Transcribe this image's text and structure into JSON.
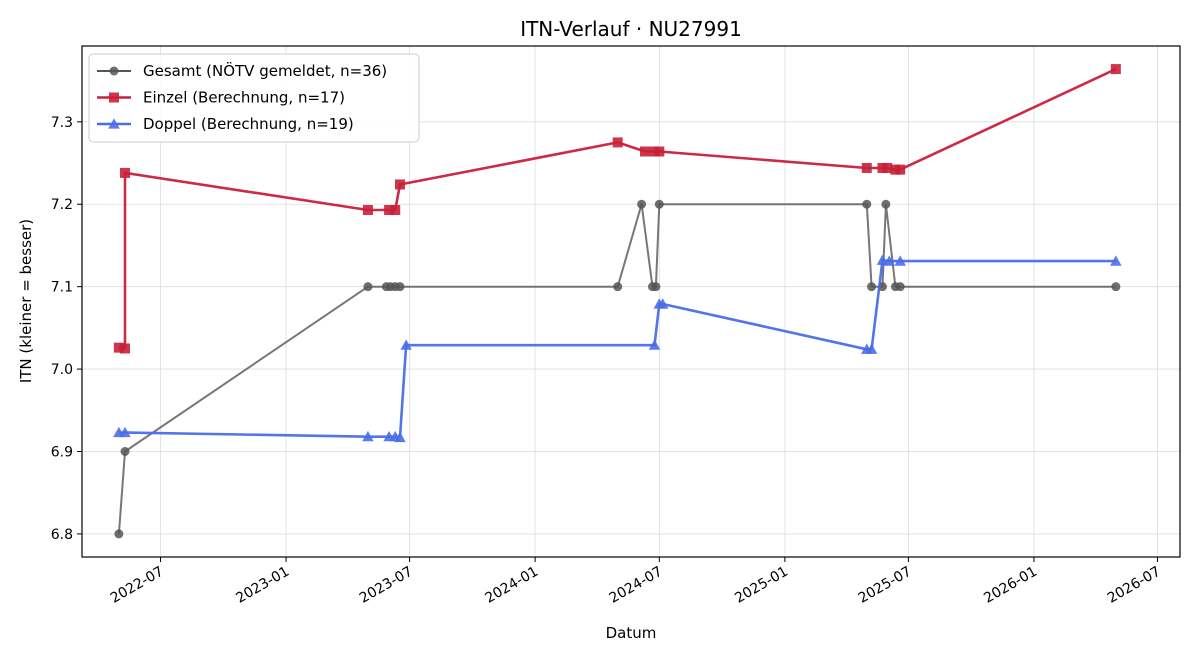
{
  "chart_data": {
    "type": "line",
    "title": "ITN-Verlauf · NU27991",
    "xlabel": "Datum",
    "ylabel": "ITN  (kleiner = besser)",
    "x_type": "date",
    "xlim": [
      "2022-03-08",
      "2026-08-03"
    ],
    "ylim": [
      6.772,
      7.392
    ],
    "x_ticks": [
      "2022-07-01",
      "2023-01-01",
      "2023-07-01",
      "2024-01-01",
      "2024-07-01",
      "2025-01-01",
      "2025-07-01",
      "2026-01-01",
      "2026-07-01"
    ],
    "x_tick_labels": [
      "2022-07",
      "2023-01",
      "2023-07",
      "2024-01",
      "2024-07",
      "2025-01",
      "2025-07",
      "2026-01",
      "2026-07"
    ],
    "y_ticks": [
      6.8,
      6.9,
      7.0,
      7.1,
      7.2,
      7.3
    ],
    "y_tick_labels": [
      "6.8",
      "6.9",
      "7.0",
      "7.1",
      "7.2",
      "7.3"
    ],
    "grid": true,
    "legend_position": "top-left",
    "series": [
      {
        "name": "Gesamt (NÖTV gemeldet, n=36)",
        "color": "#555555",
        "marker": "circle",
        "points": [
          {
            "x": "2022-05-01",
            "y": 6.8
          },
          {
            "x": "2022-05-10",
            "y": 6.9
          },
          {
            "x": "2023-05-01",
            "y": 7.1
          },
          {
            "x": "2023-05-28",
            "y": 7.1
          },
          {
            "x": "2023-06-03",
            "y": 7.1
          },
          {
            "x": "2023-06-10",
            "y": 7.1
          },
          {
            "x": "2023-06-17",
            "y": 7.1
          },
          {
            "x": "2024-05-01",
            "y": 7.1
          },
          {
            "x": "2024-06-05",
            "y": 7.2
          },
          {
            "x": "2024-06-21",
            "y": 7.1
          },
          {
            "x": "2024-06-26",
            "y": 7.1
          },
          {
            "x": "2024-07-01",
            "y": 7.2
          },
          {
            "x": "2025-05-01",
            "y": 7.2
          },
          {
            "x": "2025-05-08",
            "y": 7.1
          },
          {
            "x": "2025-05-24",
            "y": 7.1
          },
          {
            "x": "2025-05-29",
            "y": 7.2
          },
          {
            "x": "2025-06-12",
            "y": 7.1
          },
          {
            "x": "2025-06-19",
            "y": 7.1
          },
          {
            "x": "2026-05-01",
            "y": 7.1
          }
        ]
      },
      {
        "name": "Einzel (Berechnung, n=17)",
        "color": "#c8203a",
        "marker": "square",
        "points": [
          {
            "x": "2022-05-01",
            "y": 7.026
          },
          {
            "x": "2022-05-10",
            "y": 7.025
          },
          {
            "x": "2022-05-10",
            "y": 7.238
          },
          {
            "x": "2023-05-01",
            "y": 7.193
          },
          {
            "x": "2023-06-01",
            "y": 7.193
          },
          {
            "x": "2023-06-10",
            "y": 7.193
          },
          {
            "x": "2023-06-17",
            "y": 7.224
          },
          {
            "x": "2024-05-01",
            "y": 7.275
          },
          {
            "x": "2024-06-10",
            "y": 7.264
          },
          {
            "x": "2024-06-24",
            "y": 7.264
          },
          {
            "x": "2024-07-01",
            "y": 7.264
          },
          {
            "x": "2025-05-01",
            "y": 7.244
          },
          {
            "x": "2025-05-24",
            "y": 7.244
          },
          {
            "x": "2025-05-31",
            "y": 7.244
          },
          {
            "x": "2025-06-12",
            "y": 7.242
          },
          {
            "x": "2025-06-19",
            "y": 7.242
          },
          {
            "x": "2026-05-01",
            "y": 7.364
          }
        ]
      },
      {
        "name": "Doppel (Berechnung, n=19)",
        "color": "#4a6ee8",
        "marker": "triangle",
        "points": [
          {
            "x": "2022-05-01",
            "y": 6.923
          },
          {
            "x": "2022-05-10",
            "y": 6.923
          },
          {
            "x": "2023-05-01",
            "y": 6.918
          },
          {
            "x": "2023-06-01",
            "y": 6.918
          },
          {
            "x": "2023-06-10",
            "y": 6.918
          },
          {
            "x": "2023-06-17",
            "y": 6.917
          },
          {
            "x": "2023-06-26",
            "y": 7.029
          },
          {
            "x": "2024-06-24",
            "y": 7.029
          },
          {
            "x": "2024-07-01",
            "y": 7.079
          },
          {
            "x": "2024-07-06",
            "y": 7.079
          },
          {
            "x": "2025-05-01",
            "y": 7.024
          },
          {
            "x": "2025-05-08",
            "y": 7.024
          },
          {
            "x": "2025-05-24",
            "y": 7.132
          },
          {
            "x": "2025-06-03",
            "y": 7.131
          },
          {
            "x": "2025-06-19",
            "y": 7.131
          },
          {
            "x": "2026-05-01",
            "y": 7.131
          }
        ]
      }
    ]
  }
}
